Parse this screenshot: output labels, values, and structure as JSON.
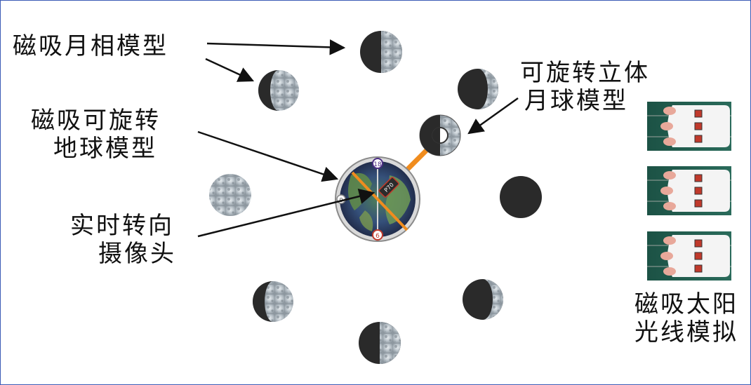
{
  "labels": {
    "moon_models": "磁吸月相模型",
    "rotatable_moon": {
      "line1": "可旋转立体",
      "line2": "月球模型"
    },
    "rotatable_earth": {
      "line1": "磁吸可旋转",
      "line2": "地球模型"
    },
    "camera": {
      "line1": "实时转向",
      "line2": "摄像头"
    },
    "sunlight": {
      "line1": "磁吸太阳",
      "line2": "光线模拟"
    }
  },
  "earth_dial": {
    "top": "18",
    "bottom": "6",
    "left": "0"
  },
  "camera_sign": "P70",
  "colors": {
    "border": "#3b5bb5",
    "arm": "#f08c1e",
    "moon_dark": "#2a2a2a",
    "moon_lit": "#cfd6dc",
    "sun_light_panel": "#1e5a4e"
  }
}
